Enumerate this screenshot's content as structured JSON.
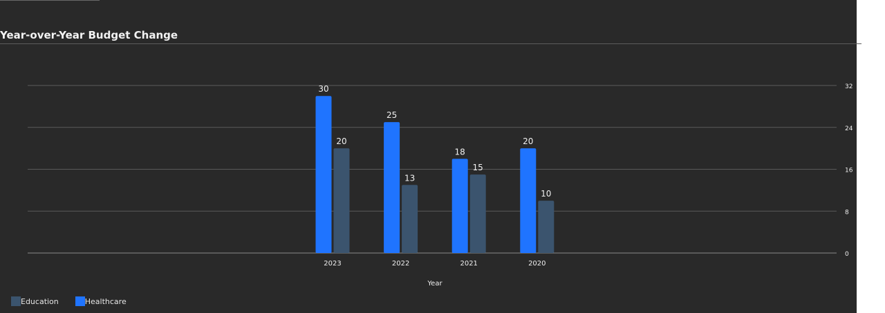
{
  "chart_data": {
    "type": "bar",
    "title": "Year-over-Year Budget Change",
    "xlabel": "Year",
    "ylabel": "",
    "categories": [
      "2023",
      "2022",
      "2021",
      "2020"
    ],
    "series": [
      {
        "name": "Healthcare",
        "color": "#1f74ff",
        "values": [
          30,
          25,
          18,
          20
        ]
      },
      {
        "name": "Education",
        "color": "#3b546e",
        "values": [
          20,
          13,
          15,
          10
        ]
      }
    ],
    "y_ticks": [
      "0",
      "8",
      "16",
      "24",
      "32"
    ],
    "ylim": [
      0,
      32
    ],
    "y_axis_side": "right",
    "grid": true,
    "legend": {
      "placement": "bottom-left",
      "items": [
        {
          "name": "Education",
          "color": "#3b546e"
        },
        {
          "name": "Healthcare",
          "color": "#1f74ff"
        }
      ]
    },
    "background": "#292929",
    "grid_color": "#5a5a5a",
    "text_color": "#f0f0f0"
  }
}
